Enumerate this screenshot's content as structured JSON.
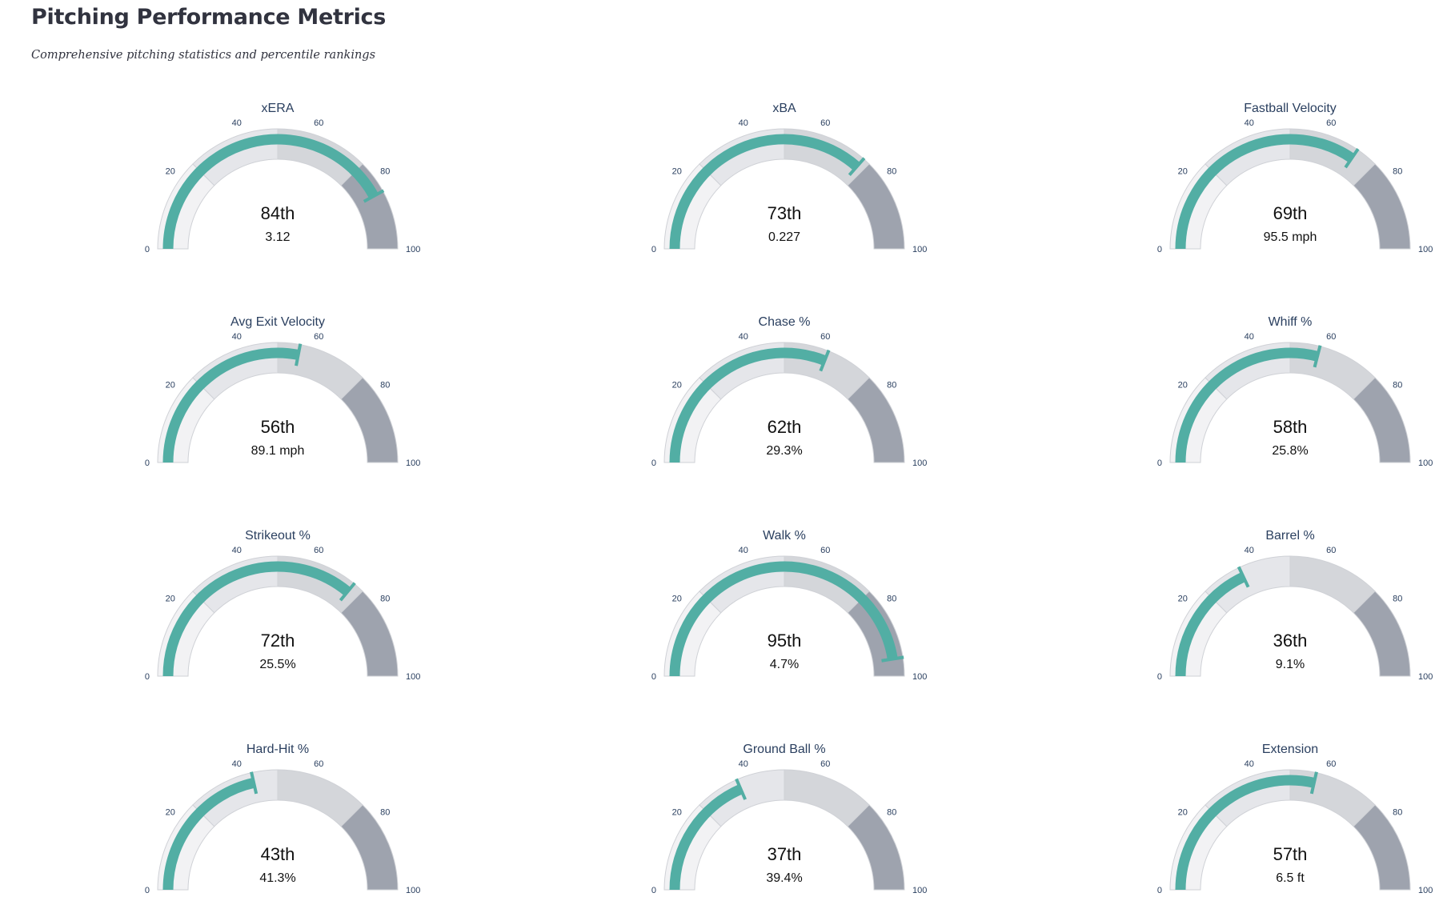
{
  "page": {
    "title": "Pitching Performance Metrics",
    "subtitle": "Comprehensive pitching statistics and percentile rankings"
  },
  "colors": {
    "bar": "#52aea4",
    "track": "#e8e8ec",
    "band_low": "#f2f2f4",
    "band_mid_low": "#e5e6ea",
    "band_mid_high": "#d4d6da",
    "band_high": "#9ea3ae",
    "band_outline": "#cfd1d6"
  },
  "chart_data": [
    {
      "type": "gauge",
      "title": "xERA",
      "percentile": 84,
      "percentile_label": "84th",
      "value_label": "3.12",
      "range": [
        0,
        100
      ],
      "ticks": [
        0,
        20,
        40,
        60,
        80,
        100
      ],
      "bands": [
        [
          0,
          25
        ],
        [
          25,
          50
        ],
        [
          50,
          75
        ],
        [
          75,
          100
        ]
      ]
    },
    {
      "type": "gauge",
      "title": "xBA",
      "percentile": 73,
      "percentile_label": "73th",
      "value_label": "0.227",
      "range": [
        0,
        100
      ],
      "ticks": [
        0,
        20,
        40,
        60,
        80,
        100
      ],
      "bands": [
        [
          0,
          25
        ],
        [
          25,
          50
        ],
        [
          50,
          75
        ],
        [
          75,
          100
        ]
      ]
    },
    {
      "type": "gauge",
      "title": "Fastball Velocity",
      "percentile": 69,
      "percentile_label": "69th",
      "value_label": "95.5 mph",
      "range": [
        0,
        100
      ],
      "ticks": [
        0,
        20,
        40,
        60,
        80,
        100
      ],
      "bands": [
        [
          0,
          25
        ],
        [
          25,
          50
        ],
        [
          50,
          75
        ],
        [
          75,
          100
        ]
      ]
    },
    {
      "type": "gauge",
      "title": "Avg Exit Velocity",
      "percentile": 56,
      "percentile_label": "56th",
      "value_label": "89.1 mph",
      "range": [
        0,
        100
      ],
      "ticks": [
        0,
        20,
        40,
        60,
        80,
        100
      ],
      "bands": [
        [
          0,
          25
        ],
        [
          25,
          50
        ],
        [
          50,
          75
        ],
        [
          75,
          100
        ]
      ]
    },
    {
      "type": "gauge",
      "title": "Chase %",
      "percentile": 62,
      "percentile_label": "62th",
      "value_label": "29.3%",
      "range": [
        0,
        100
      ],
      "ticks": [
        0,
        20,
        40,
        60,
        80,
        100
      ],
      "bands": [
        [
          0,
          25
        ],
        [
          25,
          50
        ],
        [
          50,
          75
        ],
        [
          75,
          100
        ]
      ]
    },
    {
      "type": "gauge",
      "title": "Whiff %",
      "percentile": 58,
      "percentile_label": "58th",
      "value_label": "25.8%",
      "range": [
        0,
        100
      ],
      "ticks": [
        0,
        20,
        40,
        60,
        80,
        100
      ],
      "bands": [
        [
          0,
          25
        ],
        [
          25,
          50
        ],
        [
          50,
          75
        ],
        [
          75,
          100
        ]
      ]
    },
    {
      "type": "gauge",
      "title": "Strikeout %",
      "percentile": 72,
      "percentile_label": "72th",
      "value_label": "25.5%",
      "range": [
        0,
        100
      ],
      "ticks": [
        0,
        20,
        40,
        60,
        80,
        100
      ],
      "bands": [
        [
          0,
          25
        ],
        [
          25,
          50
        ],
        [
          50,
          75
        ],
        [
          75,
          100
        ]
      ]
    },
    {
      "type": "gauge",
      "title": "Walk %",
      "percentile": 95,
      "percentile_label": "95th",
      "value_label": "4.7%",
      "range": [
        0,
        100
      ],
      "ticks": [
        0,
        20,
        40,
        60,
        80,
        100
      ],
      "bands": [
        [
          0,
          25
        ],
        [
          25,
          50
        ],
        [
          50,
          75
        ],
        [
          75,
          100
        ]
      ]
    },
    {
      "type": "gauge",
      "title": "Barrel %",
      "percentile": 36,
      "percentile_label": "36th",
      "value_label": "9.1%",
      "range": [
        0,
        100
      ],
      "ticks": [
        0,
        20,
        40,
        60,
        80,
        100
      ],
      "bands": [
        [
          0,
          25
        ],
        [
          25,
          50
        ],
        [
          50,
          75
        ],
        [
          75,
          100
        ]
      ]
    },
    {
      "type": "gauge",
      "title": "Hard-Hit %",
      "percentile": 43,
      "percentile_label": "43th",
      "value_label": "41.3%",
      "range": [
        0,
        100
      ],
      "ticks": [
        0,
        20,
        40,
        60,
        80,
        100
      ],
      "bands": [
        [
          0,
          25
        ],
        [
          25,
          50
        ],
        [
          50,
          75
        ],
        [
          75,
          100
        ]
      ]
    },
    {
      "type": "gauge",
      "title": "Ground Ball %",
      "percentile": 37,
      "percentile_label": "37th",
      "value_label": "39.4%",
      "range": [
        0,
        100
      ],
      "ticks": [
        0,
        20,
        40,
        60,
        80,
        100
      ],
      "bands": [
        [
          0,
          25
        ],
        [
          25,
          50
        ],
        [
          50,
          75
        ],
        [
          75,
          100
        ]
      ]
    },
    {
      "type": "gauge",
      "title": "Extension",
      "percentile": 57,
      "percentile_label": "57th",
      "value_label": "6.5 ft",
      "range": [
        0,
        100
      ],
      "ticks": [
        0,
        20,
        40,
        60,
        80,
        100
      ],
      "bands": [
        [
          0,
          25
        ],
        [
          25,
          50
        ],
        [
          50,
          75
        ],
        [
          75,
          100
        ]
      ]
    }
  ]
}
